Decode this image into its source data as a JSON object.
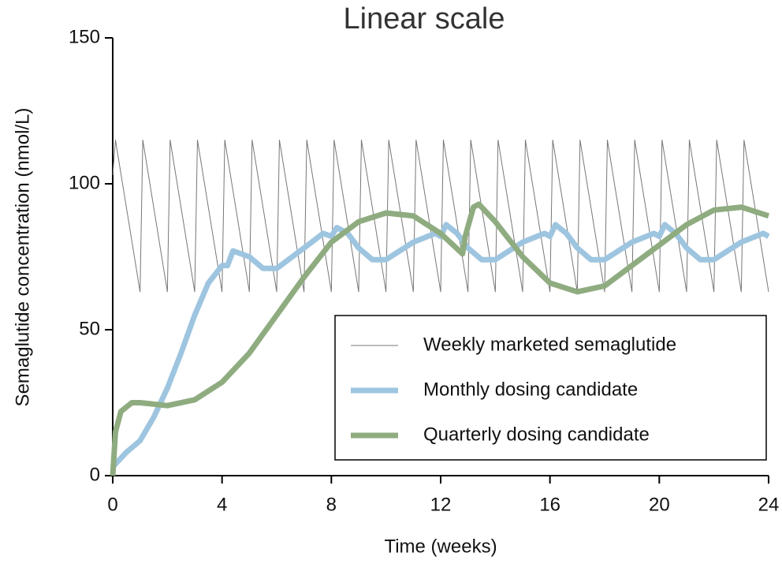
{
  "chart_data": {
    "type": "line",
    "title": "Linear scale",
    "x_label": "Time (weeks)",
    "y_label": "Semaglutide concentration (nmol/L)",
    "xlim": [
      0,
      24
    ],
    "xticks": [
      0,
      4,
      8,
      12,
      16,
      20,
      24
    ],
    "ylim": [
      0,
      150
    ],
    "yticks": [
      0,
      50,
      100,
      150
    ],
    "legend": "lower right",
    "series": [
      {
        "name": "Weekly marketed semaglutide",
        "color": "#777777",
        "width": 1,
        "x": [
          0,
          0.1,
          1,
          1.1,
          2,
          2.1,
          3,
          3.1,
          4,
          4.1,
          5,
          5.1,
          6,
          6.1,
          7,
          7.1,
          8,
          8.1,
          9,
          9.1,
          10,
          10.1,
          11,
          11.1,
          12,
          12.1,
          13,
          13.1,
          14,
          14.1,
          15,
          15.1,
          16,
          16.1,
          17,
          17.1,
          18,
          18.1,
          19,
          19.1,
          20,
          20.1,
          21,
          21.1,
          22,
          22.1,
          23,
          23.1,
          24
        ],
        "values": [
          103,
          115,
          63,
          115,
          63,
          115,
          63,
          115,
          63,
          115,
          63,
          115,
          63,
          115,
          63,
          115,
          63,
          115,
          63,
          115,
          63,
          115,
          63,
          115,
          63,
          115,
          63,
          115,
          63,
          115,
          63,
          115,
          63,
          115,
          63,
          115,
          63,
          115,
          63,
          115,
          63,
          115,
          63,
          115,
          63,
          115,
          63,
          115,
          63
        ]
      },
      {
        "name": "Monthly dosing candidate",
        "color": "#9ec5e0",
        "width": 7,
        "x": [
          0,
          0.5,
          1,
          1.5,
          2,
          2.5,
          3,
          3.5,
          4,
          4.2,
          4.4,
          5,
          5.5,
          6,
          7,
          7.7,
          8,
          8.2,
          8.6,
          9,
          9.5,
          10,
          11,
          11.8,
          12,
          12.2,
          12.6,
          13,
          13.5,
          14,
          15,
          15.8,
          16,
          16.2,
          16.6,
          17,
          17.5,
          18,
          19,
          19.8,
          20,
          20.2,
          20.6,
          21,
          21.5,
          22,
          23,
          23.8,
          24
        ],
        "values": [
          3,
          8,
          12,
          20,
          30,
          42,
          55,
          66,
          72,
          72,
          77,
          75,
          71,
          71,
          78,
          83,
          82,
          85,
          83,
          78,
          74,
          74,
          80,
          83,
          82,
          86,
          83,
          78,
          74,
          74,
          80,
          83,
          82,
          86,
          83,
          78,
          74,
          74,
          80,
          83,
          82,
          86,
          83,
          78,
          74,
          74,
          80,
          83,
          82
        ]
      },
      {
        "name": "Quarterly dosing candidate",
        "color": "#8fac80",
        "width": 7,
        "x": [
          0,
          0.1,
          0.3,
          0.7,
          1,
          2,
          3,
          4,
          5,
          6,
          7,
          8,
          9,
          10,
          11,
          12,
          12.8,
          12.9,
          13.2,
          13.4,
          14,
          15,
          16,
          17,
          18,
          19,
          20,
          21,
          22,
          23,
          24
        ],
        "values": [
          0,
          15,
          22,
          25,
          25,
          24,
          26,
          32,
          42,
          55,
          68,
          80,
          87,
          90,
          89,
          83,
          76,
          82,
          92,
          93,
          87,
          75,
          66,
          63,
          65,
          72,
          79,
          86,
          91,
          92,
          89
        ]
      }
    ]
  }
}
